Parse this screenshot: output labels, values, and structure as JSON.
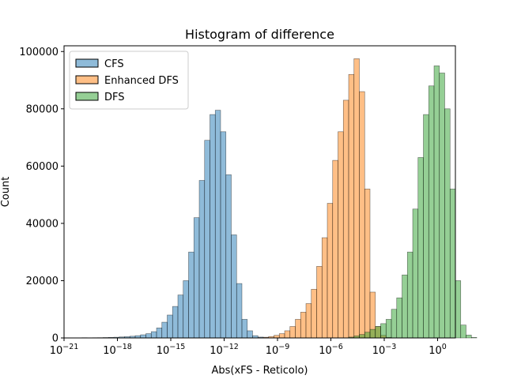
{
  "chart_data": {
    "type": "histogram",
    "title": "Histogram of difference",
    "xlabel": "Abs(xFS - Reticolo)",
    "ylabel": "Count",
    "xscale": "log",
    "xlim_log10": [
      -21,
      1
    ],
    "ylim": [
      0,
      102000
    ],
    "bin_width_log10": 0.3,
    "x_ticks": [
      {
        "exp": -21,
        "base": "10",
        "power": "−21"
      },
      {
        "exp": -18,
        "base": "10",
        "power": "−18"
      },
      {
        "exp": -15,
        "base": "10",
        "power": "−15"
      },
      {
        "exp": -12,
        "base": "10",
        "power": "−12"
      },
      {
        "exp": -9,
        "base": "10",
        "power": "−9"
      },
      {
        "exp": -6,
        "base": "10",
        "power": "−6"
      },
      {
        "exp": -3,
        "base": "10",
        "power": "−3"
      },
      {
        "exp": 0,
        "base": "10",
        "power": "0"
      }
    ],
    "y_ticks": [
      {
        "value": 0,
        "label": "0"
      },
      {
        "value": 20000,
        "label": "20000"
      },
      {
        "value": 40000,
        "label": "40000"
      },
      {
        "value": 60000,
        "label": "60000"
      },
      {
        "value": 80000,
        "label": "80000"
      },
      {
        "value": 100000,
        "label": "100000"
      }
    ],
    "legend_position": "upper-left",
    "series": [
      {
        "name": "CFS",
        "color": "#1f77b4",
        "bins": [
          [
            -20.0,
            80
          ],
          [
            -19.7,
            60
          ],
          [
            -19.4,
            80
          ],
          [
            -19.1,
            100
          ],
          [
            -18.8,
            150
          ],
          [
            -18.5,
            200
          ],
          [
            -18.2,
            250
          ],
          [
            -17.9,
            350
          ],
          [
            -17.6,
            450
          ],
          [
            -17.3,
            600
          ],
          [
            -17.0,
            800
          ],
          [
            -16.7,
            1100
          ],
          [
            -16.4,
            1500
          ],
          [
            -16.1,
            2200
          ],
          [
            -15.8,
            3500
          ],
          [
            -15.5,
            5500
          ],
          [
            -15.2,
            8000
          ],
          [
            -14.9,
            11000
          ],
          [
            -14.6,
            15000
          ],
          [
            -14.3,
            20000
          ],
          [
            -14.0,
            30000
          ],
          [
            -13.7,
            42000
          ],
          [
            -13.4,
            55000
          ],
          [
            -13.1,
            69000
          ],
          [
            -12.8,
            78000
          ],
          [
            -12.5,
            79500
          ],
          [
            -12.2,
            72000
          ],
          [
            -11.9,
            57000
          ],
          [
            -11.6,
            36000
          ],
          [
            -11.3,
            19000
          ],
          [
            -11.0,
            6500
          ],
          [
            -10.7,
            2500
          ],
          [
            -10.4,
            800
          ],
          [
            -10.1,
            300
          ],
          [
            -9.8,
            100
          ]
        ]
      },
      {
        "name": "Enhanced DFS",
        "color": "#ff7f0e",
        "bins": [
          [
            -10.1,
            100
          ],
          [
            -9.8,
            250
          ],
          [
            -9.5,
            500
          ],
          [
            -9.2,
            900
          ],
          [
            -8.9,
            1500
          ],
          [
            -8.6,
            2500
          ],
          [
            -8.3,
            4000
          ],
          [
            -8.0,
            6500
          ],
          [
            -7.7,
            9000
          ],
          [
            -7.4,
            12000
          ],
          [
            -7.1,
            17000
          ],
          [
            -6.8,
            25000
          ],
          [
            -6.5,
            35000
          ],
          [
            -6.2,
            47000
          ],
          [
            -5.9,
            62000
          ],
          [
            -5.6,
            72000
          ],
          [
            -5.3,
            83000
          ],
          [
            -5.0,
            92000
          ],
          [
            -4.7,
            97500
          ],
          [
            -4.4,
            86000
          ],
          [
            -4.1,
            52000
          ],
          [
            -3.8,
            16000
          ],
          [
            -3.5,
            4000
          ],
          [
            -3.2,
            900
          ],
          [
            -2.9,
            200
          ]
        ]
      },
      {
        "name": "DFS",
        "color": "#2ca02c",
        "bins": [
          [
            -5.0,
            300
          ],
          [
            -4.7,
            700
          ],
          [
            -4.4,
            1200
          ],
          [
            -4.1,
            2000
          ],
          [
            -3.8,
            3000
          ],
          [
            -3.5,
            4000
          ],
          [
            -3.2,
            5000
          ],
          [
            -2.9,
            6500
          ],
          [
            -2.6,
            10000
          ],
          [
            -2.3,
            14000
          ],
          [
            -2.0,
            22000
          ],
          [
            -1.7,
            30000
          ],
          [
            -1.4,
            45000
          ],
          [
            -1.1,
            63000
          ],
          [
            -0.8,
            78000
          ],
          [
            -0.5,
            88000
          ],
          [
            -0.2,
            95000
          ],
          [
            0.1,
            92500
          ],
          [
            0.4,
            80000
          ],
          [
            0.7,
            52000
          ],
          [
            1.0,
            20000
          ],
          [
            1.3,
            4500
          ],
          [
            1.6,
            1000
          ],
          [
            1.9,
            200
          ]
        ]
      }
    ]
  }
}
